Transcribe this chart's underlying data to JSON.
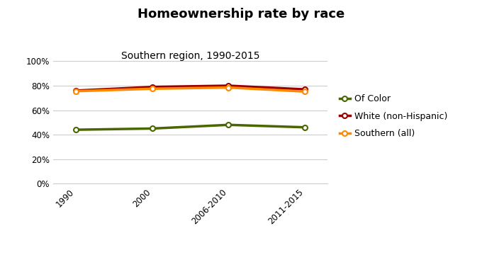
{
  "title": "Homeownership rate by race",
  "subtitle": "Southern region, 1990-2015",
  "x_labels": [
    "1990",
    "2000",
    "2006-2010",
    "2011-2015"
  ],
  "series": [
    {
      "name": "Of Color",
      "values": [
        0.44,
        0.45,
        0.48,
        0.46
      ],
      "color": "#4a6600",
      "linewidth": 2.5,
      "markersize": 5
    },
    {
      "name": "White (non-Hispanic)",
      "values": [
        0.76,
        0.79,
        0.8,
        0.77
      ],
      "color": "#990000",
      "linewidth": 2.5,
      "markersize": 5
    },
    {
      "name": "Southern (all)",
      "values": [
        0.755,
        0.775,
        0.785,
        0.752
      ],
      "color": "#ff8800",
      "linewidth": 2.5,
      "markersize": 5
    }
  ],
  "ylim": [
    0.0,
    1.0
  ],
  "yticks": [
    0.0,
    0.2,
    0.4,
    0.6,
    0.8,
    1.0
  ],
  "background_color": "#ffffff",
  "grid_color": "#cccccc",
  "title_fontsize": 13,
  "subtitle_fontsize": 10,
  "legend_fontsize": 9,
  "tick_fontsize": 8.5
}
